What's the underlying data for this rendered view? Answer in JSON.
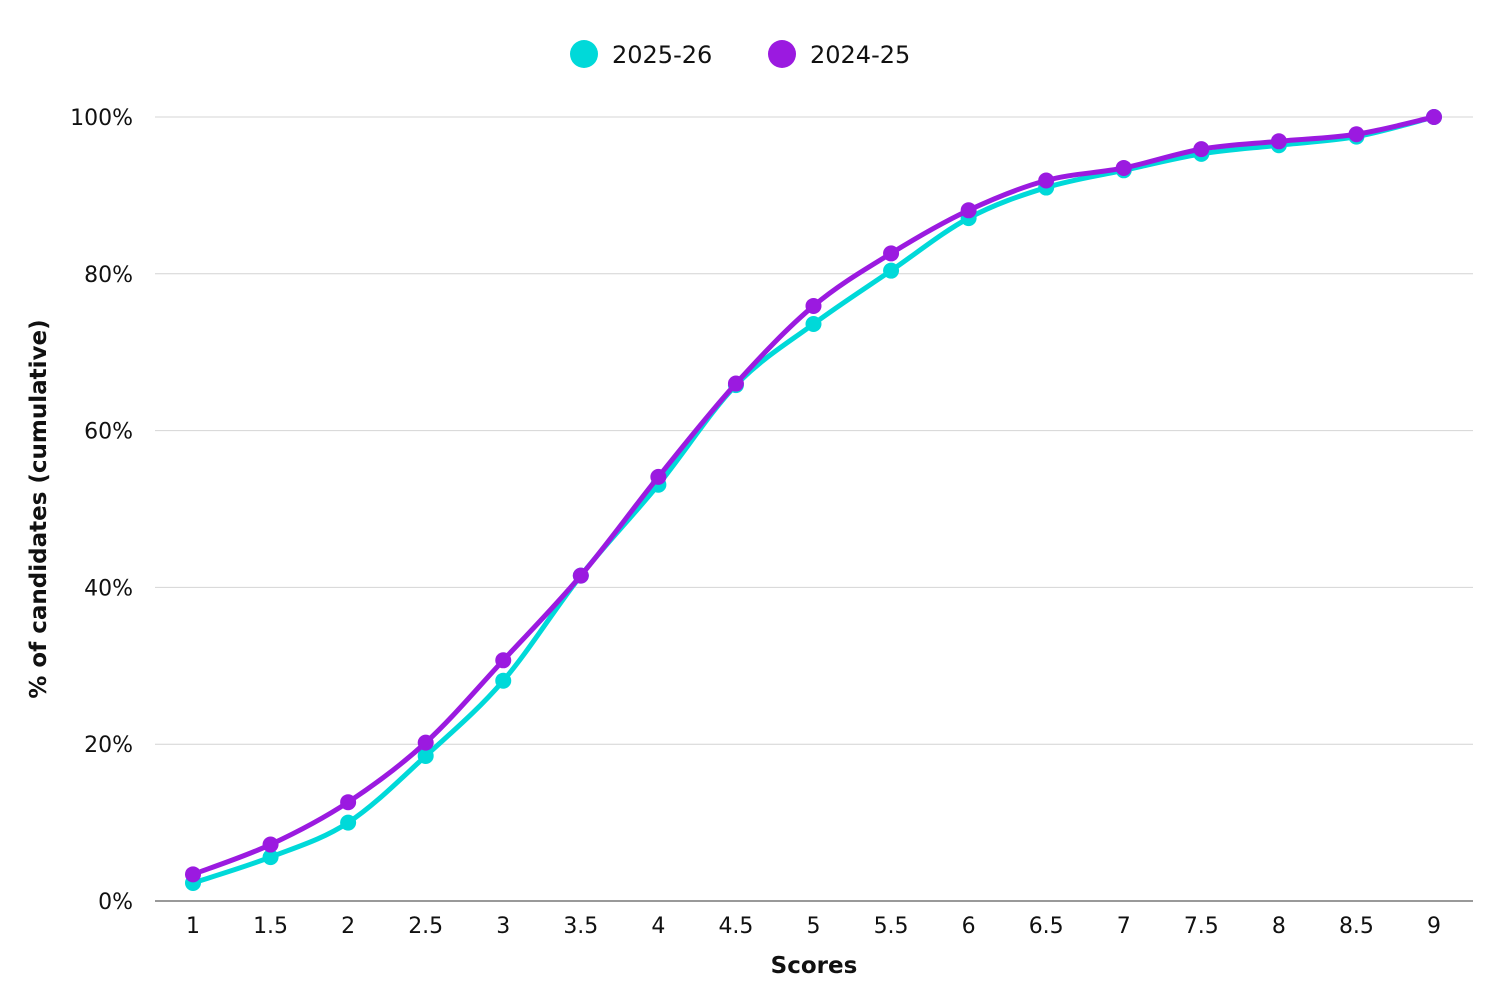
{
  "chart_data": {
    "type": "line",
    "title": "",
    "xlabel": "Scores",
    "ylabel": "% of candidates (cumulative)",
    "x": [
      1,
      1.5,
      2,
      2.5,
      3,
      3.5,
      4,
      4.5,
      5,
      5.5,
      6,
      6.5,
      7,
      7.5,
      8,
      8.5,
      9
    ],
    "x_tick_labels": [
      "1",
      "1.5",
      "2",
      "2.5",
      "3",
      "3.5",
      "4",
      "4.5",
      "5",
      "5.5",
      "6",
      "6.5",
      "7",
      "7.5",
      "8",
      "8.5",
      "9"
    ],
    "y_ticks": [
      0,
      20,
      40,
      60,
      80,
      100
    ],
    "y_tick_labels": [
      "0%",
      "20%",
      "40%",
      "60%",
      "80%",
      "100%"
    ],
    "ylim": [
      0,
      100
    ],
    "grid": true,
    "legend_position": "top-center",
    "series": [
      {
        "name": "2025-26",
        "color": "#00d9d9",
        "values": [
          2.3,
          5.6,
          10.0,
          18.5,
          28.1,
          41.5,
          53.1,
          65.8,
          73.6,
          80.4,
          87.1,
          91.0,
          93.2,
          95.3,
          96.4,
          97.5,
          100.0
        ]
      },
      {
        "name": "2024-25",
        "color": "#9b1ae0",
        "values": [
          3.4,
          7.2,
          12.6,
          20.2,
          30.7,
          41.5,
          54.1,
          66.0,
          75.9,
          82.6,
          88.1,
          91.9,
          93.5,
          95.9,
          96.9,
          97.8,
          100.0
        ]
      }
    ]
  }
}
